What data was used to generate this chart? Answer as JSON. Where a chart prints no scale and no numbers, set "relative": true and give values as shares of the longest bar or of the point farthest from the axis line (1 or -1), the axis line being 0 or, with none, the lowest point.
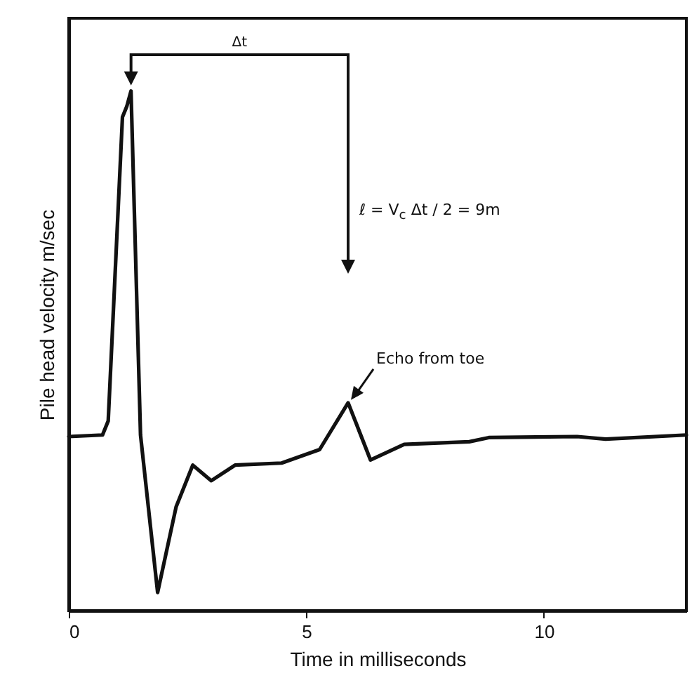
{
  "chart_data": {
    "type": "line",
    "relative": true,
    "xlabel": "Time in milliseconds",
    "ylabel": "Pile head velocity m/sec",
    "x": [
      0,
      0.71,
      0.83,
      1.13,
      1.22,
      1.31,
      1.51,
      1.87,
      2.26,
      2.61,
      3.0,
      3.5,
      4.48,
      5.28,
      5.88,
      6.35,
      7.06,
      8.43,
      8.84,
      10.7,
      11.3,
      13.0
    ],
    "series": [
      {
        "color": "#111111",
        "values": [
          0.335,
          0.338,
          0.365,
          0.95,
          0.97,
          1.0,
          0.338,
          0.035,
          0.2,
          0.28,
          0.25,
          0.28,
          0.284,
          0.31,
          0.4,
          0.29,
          0.32,
          0.325,
          0.333,
          0.335,
          0.33,
          0.338
        ]
      }
    ],
    "xlim": [
      0,
      13.0
    ],
    "xticks": [
      0,
      5,
      10
    ],
    "grid": false,
    "annotations": [
      "Δt",
      "ℓ = V$_{c}$ Δt / 2 = 9m",
      {
        "text": "Echo from toe",
        "x": 5.88,
        "y": 0.4
      }
    ]
  }
}
